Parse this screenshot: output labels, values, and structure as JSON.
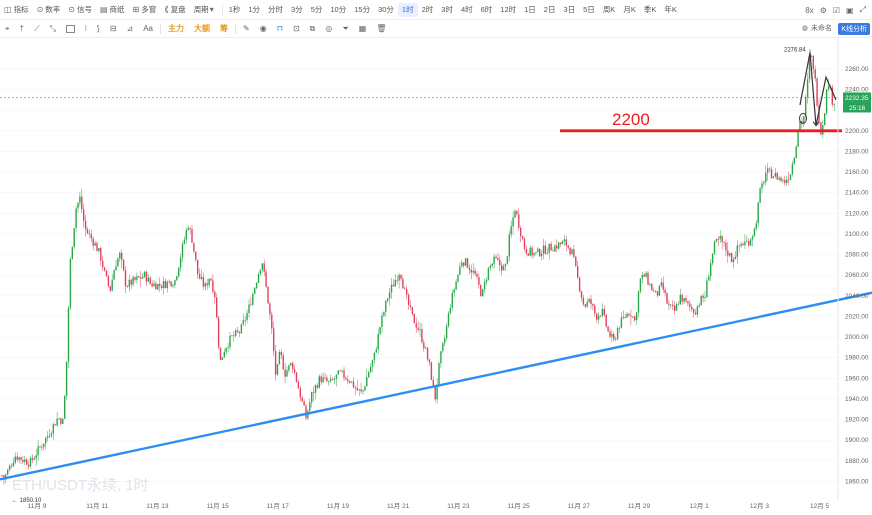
{
  "toolbar_top": {
    "items": [
      "指标",
      "数率",
      "信号",
      "商纸",
      "多窗",
      "复盘",
      "周期"
    ],
    "intervals": [
      "1秒",
      "1分",
      "分时",
      "3分",
      "5分",
      "10分",
      "15分",
      "30分",
      "1时",
      "2时",
      "3时",
      "4时",
      "6时",
      "12时",
      "1日",
      "2日",
      "3日",
      "5日",
      "周K",
      "月K",
      "季K",
      "年K"
    ],
    "active_interval": "1时",
    "right": {
      "zoom": "8x",
      "settings": "⚙"
    }
  },
  "toolbar_drawing": {
    "tools": [
      "光标",
      "直线",
      "射线",
      "矩形",
      "画笔",
      "测量",
      "文本"
    ],
    "text_tool": "Aa",
    "labels": [
      "主力",
      "大额",
      "筹"
    ],
    "right": {
      "status": "未命名",
      "button": "K线分析"
    }
  },
  "chart_data": {
    "type": "candlestick",
    "title": "ETH/USDT永续, 1时",
    "x_tick_labels": [
      "11月 9",
      "11月 11",
      "11月 13",
      "11月 15",
      "11月 17",
      "11月 19",
      "11月 21",
      "11月 23",
      "11月 25",
      "11月 27",
      "11月 29",
      "12月 1",
      "12月 3",
      "12月 5"
    ],
    "y_ticks": [
      1860,
      1880,
      1900,
      1920,
      1940,
      1960,
      1980,
      2000,
      2020,
      2040,
      2060,
      2080,
      2100,
      2120,
      2140,
      2160,
      2180,
      2200,
      2220,
      2240,
      2260
    ],
    "ylim": [
      1842,
      2290
    ],
    "price_path": [
      [
        0,
        1870
      ],
      [
        4,
        1862
      ],
      [
        15,
        1885
      ],
      [
        30,
        1878
      ],
      [
        48,
        1905
      ],
      [
        58,
        1922
      ],
      [
        63,
        1918
      ],
      [
        66,
        1960
      ],
      [
        70,
        2070
      ],
      [
        76,
        2125
      ],
      [
        80,
        2135
      ],
      [
        85,
        2105
      ],
      [
        95,
        2090
      ],
      [
        100,
        2080
      ],
      [
        105,
        2060
      ],
      [
        110,
        2045
      ],
      [
        115,
        2070
      ],
      [
        120,
        2080
      ],
      [
        126,
        2050
      ],
      [
        135,
        2055
      ],
      [
        145,
        2060
      ],
      [
        150,
        2052
      ],
      [
        160,
        2050
      ],
      [
        175,
        2055
      ],
      [
        182,
        2085
      ],
      [
        188,
        2110
      ],
      [
        192,
        2095
      ],
      [
        198,
        2060
      ],
      [
        205,
        2048
      ],
      [
        210,
        2060
      ],
      [
        215,
        2040
      ],
      [
        220,
        1975
      ],
      [
        225,
        1990
      ],
      [
        232,
        2000
      ],
      [
        240,
        2005
      ],
      [
        248,
        2025
      ],
      [
        255,
        2050
      ],
      [
        262,
        2075
      ],
      [
        268,
        2035
      ],
      [
        272,
        2005
      ],
      [
        276,
        1960
      ],
      [
        280,
        1985
      ],
      [
        285,
        1965
      ],
      [
        292,
        1975
      ],
      [
        300,
        1945
      ],
      [
        306,
        1922
      ],
      [
        312,
        1945
      ],
      [
        320,
        1960
      ],
      [
        330,
        1955
      ],
      [
        340,
        1965
      ],
      [
        350,
        1958
      ],
      [
        356,
        1950
      ],
      [
        362,
        1945
      ],
      [
        368,
        1965
      ],
      [
        374,
        1980
      ],
      [
        380,
        2010
      ],
      [
        388,
        2040
      ],
      [
        395,
        2055
      ],
      [
        400,
        2065
      ],
      [
        405,
        2042
      ],
      [
        412,
        2020
      ],
      [
        420,
        2005
      ],
      [
        426,
        1985
      ],
      [
        430,
        1970
      ],
      [
        435,
        1940
      ],
      [
        440,
        1978
      ],
      [
        445,
        2000
      ],
      [
        450,
        2030
      ],
      [
        455,
        2050
      ],
      [
        462,
        2075
      ],
      [
        468,
        2070
      ],
      [
        475,
        2060
      ],
      [
        482,
        2040
      ],
      [
        488,
        2065
      ],
      [
        495,
        2075
      ],
      [
        505,
        2065
      ],
      [
        510,
        2100
      ],
      [
        515,
        2125
      ],
      [
        520,
        2105
      ],
      [
        525,
        2085
      ],
      [
        535,
        2080
      ],
      [
        545,
        2085
      ],
      [
        555,
        2088
      ],
      [
        565,
        2092
      ],
      [
        572,
        2082
      ],
      [
        578,
        2055
      ],
      [
        584,
        2030
      ],
      [
        590,
        2035
      ],
      [
        596,
        2020
      ],
      [
        602,
        2025
      ],
      [
        608,
        2005
      ],
      [
        614,
        1995
      ],
      [
        618,
        2010
      ],
      [
        625,
        2020
      ],
      [
        630,
        2025
      ],
      [
        635,
        2015
      ],
      [
        640,
        2055
      ],
      [
        645,
        2060
      ],
      [
        650,
        2050
      ],
      [
        656,
        2040
      ],
      [
        662,
        2050
      ],
      [
        668,
        2030
      ],
      [
        675,
        2025
      ],
      [
        680,
        2040
      ],
      [
        688,
        2030
      ],
      [
        695,
        2025
      ],
      [
        700,
        2035
      ],
      [
        705,
        2040
      ],
      [
        710,
        2070
      ],
      [
        715,
        2090
      ],
      [
        720,
        2095
      ],
      [
        726,
        2085
      ],
      [
        732,
        2075
      ],
      [
        740,
        2090
      ],
      [
        748,
        2092
      ],
      [
        755,
        2105
      ],
      [
        760,
        2140
      ],
      [
        766,
        2160
      ],
      [
        772,
        2158
      ],
      [
        778,
        2155
      ],
      [
        784,
        2150
      ],
      [
        790,
        2158
      ],
      [
        795,
        2180
      ],
      [
        799,
        2210
      ],
      [
        803,
        2208
      ],
      [
        807,
        2240
      ],
      [
        810,
        2276
      ],
      [
        814,
        2260
      ],
      [
        818,
        2220
      ],
      [
        821,
        2198
      ],
      [
        824,
        2215
      ],
      [
        828,
        2250
      ],
      [
        832,
        2230
      ],
      [
        836,
        2228
      ]
    ],
    "last_price": "2232.35",
    "countdown": "25:16",
    "annotations": {
      "high_label": "2276.84",
      "low_label": "1850.10",
      "resistance_label": "2200",
      "resistance_price": 2200,
      "trendline_from": [
        0,
        1862
      ],
      "trendline_to": [
        872,
        2043
      ]
    },
    "colors": {
      "up": "#29a64a",
      "down": "#e0405d",
      "resistance": "#ee1c1c",
      "trendline": "#2e8ef0",
      "price_tag": "#27a35a",
      "price_line": "#4caf50"
    }
  }
}
